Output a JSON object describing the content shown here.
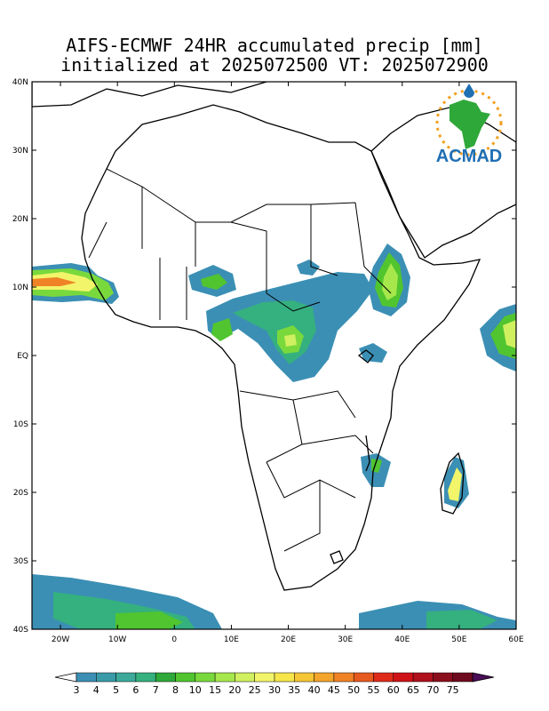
{
  "title": {
    "line1": "AIFS-ECMWF 24HR accumulated precip [mm]",
    "line2": "initialized at 2025072500 VT: 2025072900"
  },
  "logo": {
    "text": "ACMAD"
  },
  "axes": {
    "lat_labels": [
      "40N",
      "30N",
      "20N",
      "10N",
      "EQ",
      "10S",
      "20S",
      "30S",
      "40S"
    ],
    "lon_labels": [
      "20W",
      "10W",
      "0",
      "10E",
      "20E",
      "30E",
      "40E",
      "50E",
      "60E"
    ],
    "lon_range": [
      -25,
      60
    ],
    "lat_range": [
      -40,
      40
    ]
  },
  "colorbar": {
    "labels": [
      "3",
      "4",
      "5",
      "6",
      "7",
      "8",
      "10",
      "15",
      "20",
      "25",
      "30",
      "35",
      "40",
      "45",
      "50",
      "55",
      "60",
      "65",
      "70",
      "75"
    ],
    "colors": [
      "#3b8fb4",
      "#3a9ba8",
      "#3ca99b",
      "#35b07f",
      "#2fa83a",
      "#50c52f",
      "#79d93c",
      "#a6e84c",
      "#d0f060",
      "#f2f56a",
      "#f6e64a",
      "#f5c635",
      "#f3a52c",
      "#ef8326",
      "#e75a1f",
      "#df2a1a",
      "#cf1218",
      "#b0111d",
      "#8c0f1e",
      "#6e0a1e",
      "#5b0b35",
      "#4a0d57"
    ]
  },
  "colors": {
    "light": "#3b8fb4",
    "moderate": "#50c52f",
    "heavy": "#f2f56a",
    "intense": "#ef8326"
  }
}
